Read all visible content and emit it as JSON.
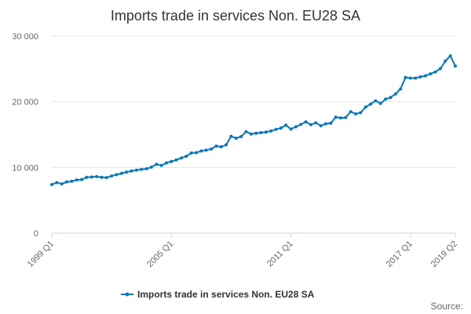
{
  "chart_data": {
    "type": "line",
    "title": "Imports trade in services Non. EU28 SA",
    "xlabel": "",
    "ylabel": "",
    "ylim": [
      0,
      30000
    ],
    "y_ticks": [
      {
        "value": 0,
        "label": "0"
      },
      {
        "value": 10000,
        "label": "10 000"
      },
      {
        "value": 20000,
        "label": "20 000"
      },
      {
        "value": 30000,
        "label": "30 000"
      }
    ],
    "x_tick_labels": [
      {
        "index": 0,
        "label": "1999 Q1"
      },
      {
        "index": 24,
        "label": "2005 Q1"
      },
      {
        "index": 48,
        "label": "2011 Q1"
      },
      {
        "index": 72,
        "label": "2017 Q1"
      },
      {
        "index": 81,
        "label": "2019 Q2"
      }
    ],
    "grid": true,
    "legend_position": "bottom-center",
    "series": [
      {
        "name": "Imports trade in services Non. EU28 SA",
        "color": "#0a77b5",
        "x": [
          "1999 Q1",
          "1999 Q2",
          "1999 Q3",
          "1999 Q4",
          "2000 Q1",
          "2000 Q2",
          "2000 Q3",
          "2000 Q4",
          "2001 Q1",
          "2001 Q2",
          "2001 Q3",
          "2001 Q4",
          "2002 Q1",
          "2002 Q2",
          "2002 Q3",
          "2002 Q4",
          "2003 Q1",
          "2003 Q2",
          "2003 Q3",
          "2003 Q4",
          "2004 Q1",
          "2004 Q2",
          "2004 Q3",
          "2004 Q4",
          "2005 Q1",
          "2005 Q2",
          "2005 Q3",
          "2005 Q4",
          "2006 Q1",
          "2006 Q2",
          "2006 Q3",
          "2006 Q4",
          "2007 Q1",
          "2007 Q2",
          "2007 Q3",
          "2007 Q4",
          "2008 Q1",
          "2008 Q2",
          "2008 Q3",
          "2008 Q4",
          "2009 Q1",
          "2009 Q2",
          "2009 Q3",
          "2009 Q4",
          "2010 Q1",
          "2010 Q2",
          "2010 Q3",
          "2010 Q4",
          "2011 Q1",
          "2011 Q2",
          "2011 Q3",
          "2011 Q4",
          "2012 Q1",
          "2012 Q2",
          "2012 Q3",
          "2012 Q4",
          "2013 Q1",
          "2013 Q2",
          "2013 Q3",
          "2013 Q4",
          "2014 Q1",
          "2014 Q2",
          "2014 Q3",
          "2014 Q4",
          "2015 Q1",
          "2015 Q2",
          "2015 Q3",
          "2015 Q4",
          "2016 Q1",
          "2016 Q2",
          "2016 Q3",
          "2016 Q4",
          "2017 Q1",
          "2017 Q2",
          "2017 Q3",
          "2017 Q4",
          "2018 Q1",
          "2018 Q2",
          "2018 Q3",
          "2018 Q4",
          "2019 Q1",
          "2019 Q2"
        ],
        "values": [
          7400,
          7700,
          7500,
          7800,
          7900,
          8100,
          8150,
          8500,
          8550,
          8600,
          8500,
          8450,
          8700,
          8900,
          9100,
          9300,
          9450,
          9600,
          9700,
          9800,
          10050,
          10500,
          10300,
          10700,
          10900,
          11150,
          11450,
          11700,
          12200,
          12250,
          12500,
          12650,
          12800,
          13250,
          13150,
          13450,
          14750,
          14450,
          14700,
          15450,
          15100,
          15200,
          15300,
          15400,
          15550,
          15800,
          16000,
          16450,
          15850,
          16200,
          16550,
          16950,
          16500,
          16800,
          16350,
          16650,
          16750,
          17650,
          17550,
          17600,
          18500,
          18150,
          18350,
          19200,
          19650,
          20150,
          19750,
          20400,
          20650,
          21200,
          21950,
          23700,
          23600,
          23600,
          23800,
          23950,
          24250,
          24550,
          25050,
          26200,
          27000,
          25450
        ]
      }
    ]
  },
  "source_label": "Source:"
}
